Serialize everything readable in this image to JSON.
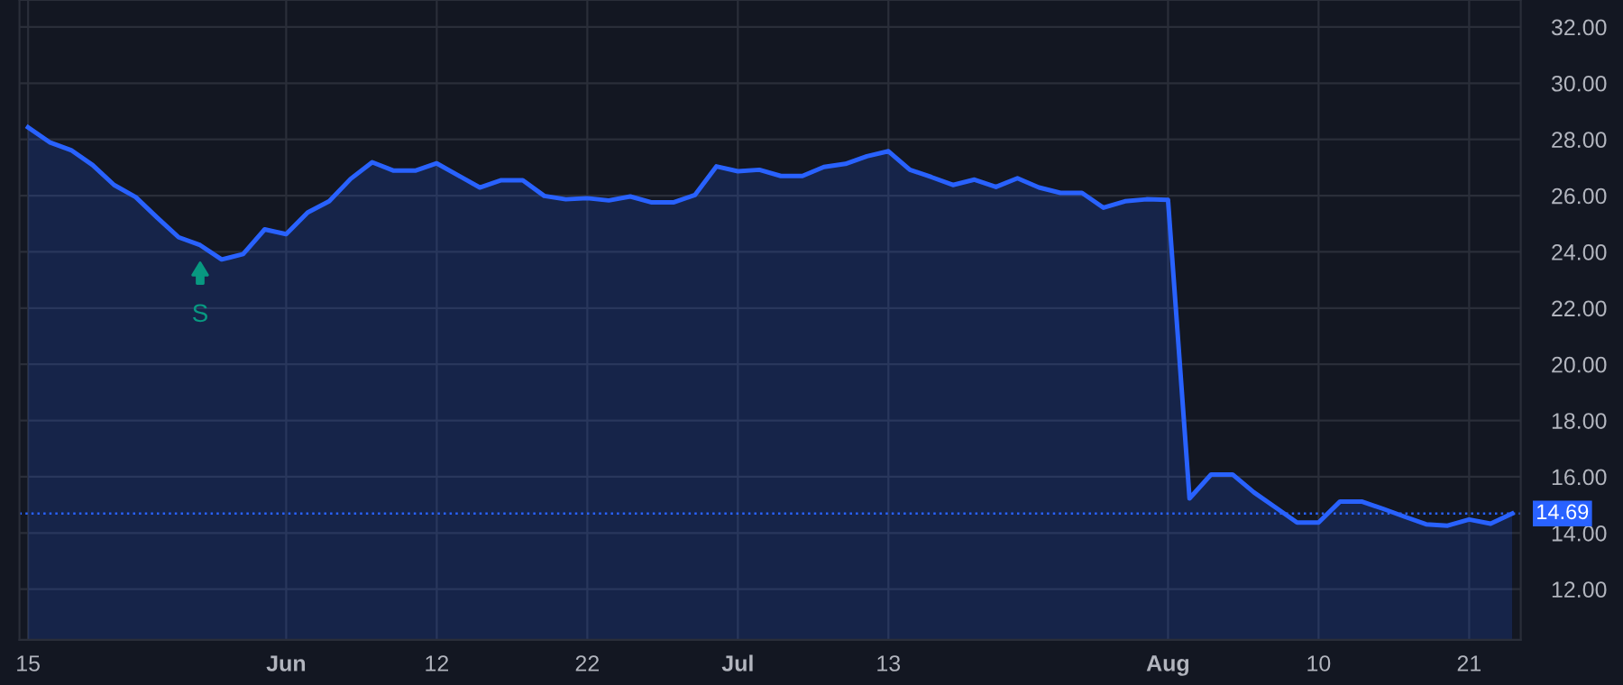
{
  "chart_data": {
    "type": "area",
    "categories": [
      "15",
      null,
      null,
      null,
      null,
      null,
      null,
      null,
      null,
      null,
      null,
      null,
      "Jun",
      null,
      null,
      null,
      null,
      null,
      null,
      "12",
      null,
      null,
      null,
      null,
      null,
      null,
      "22",
      null,
      null,
      null,
      null,
      null,
      null,
      "Jul",
      null,
      null,
      null,
      null,
      null,
      null,
      "13",
      null,
      null,
      null,
      null,
      null,
      null,
      null,
      null,
      null,
      null,
      null,
      null,
      "Aug",
      null,
      null,
      null,
      null,
      null,
      null,
      "10",
      null,
      null,
      null,
      null,
      null,
      null,
      "21",
      null,
      null
    ],
    "series": [
      {
        "color": "#2962ff",
        "values": [
          28.43,
          27.9,
          27.62,
          27.09,
          26.38,
          25.95,
          25.22,
          24.52,
          24.24,
          23.73,
          23.92,
          24.8,
          24.63,
          25.4,
          25.8,
          26.6,
          27.19,
          26.89,
          26.89,
          27.15,
          26.72,
          26.29,
          26.55,
          26.55,
          25.99,
          25.87,
          25.91,
          25.83,
          25.97,
          25.76,
          25.76,
          26.02,
          27.04,
          26.87,
          26.92,
          26.7,
          26.7,
          27.02,
          27.13,
          27.4,
          27.58,
          26.92,
          26.66,
          26.38,
          26.57,
          26.31,
          26.62,
          26.29,
          26.1,
          26.1,
          25.57,
          25.8,
          25.87,
          25.85,
          15.23,
          16.08,
          16.08,
          15.44,
          14.91,
          14.37,
          14.37,
          15.12,
          15.12,
          14.86,
          14.58,
          14.31,
          14.26,
          14.48,
          14.33,
          14.69
        ]
      }
    ],
    "ylim": [
      10.2,
      32.96
    ],
    "yticks": [
      {
        "value": 12,
        "label": "12.00"
      },
      {
        "value": 14,
        "label": "14.00"
      },
      {
        "value": 16,
        "label": "16.00"
      },
      {
        "value": 18,
        "label": "18.00"
      },
      {
        "value": 20,
        "label": "20.00"
      },
      {
        "value": 22,
        "label": "22.00"
      },
      {
        "value": 24,
        "label": "24.00"
      },
      {
        "value": 26,
        "label": "26.00"
      },
      {
        "value": 28,
        "label": "28.00"
      },
      {
        "value": 30,
        "label": "30.00"
      },
      {
        "value": 32,
        "label": "32.00"
      }
    ],
    "ref_lines": [
      {
        "axis": "y",
        "value": 14.69,
        "label": "14.69",
        "color": "#2962ff",
        "line_style": "dotted"
      }
    ],
    "annotations": [
      {
        "text": "S",
        "y": 24.24
      }
    ],
    "grid": true,
    "legend": false
  }
}
